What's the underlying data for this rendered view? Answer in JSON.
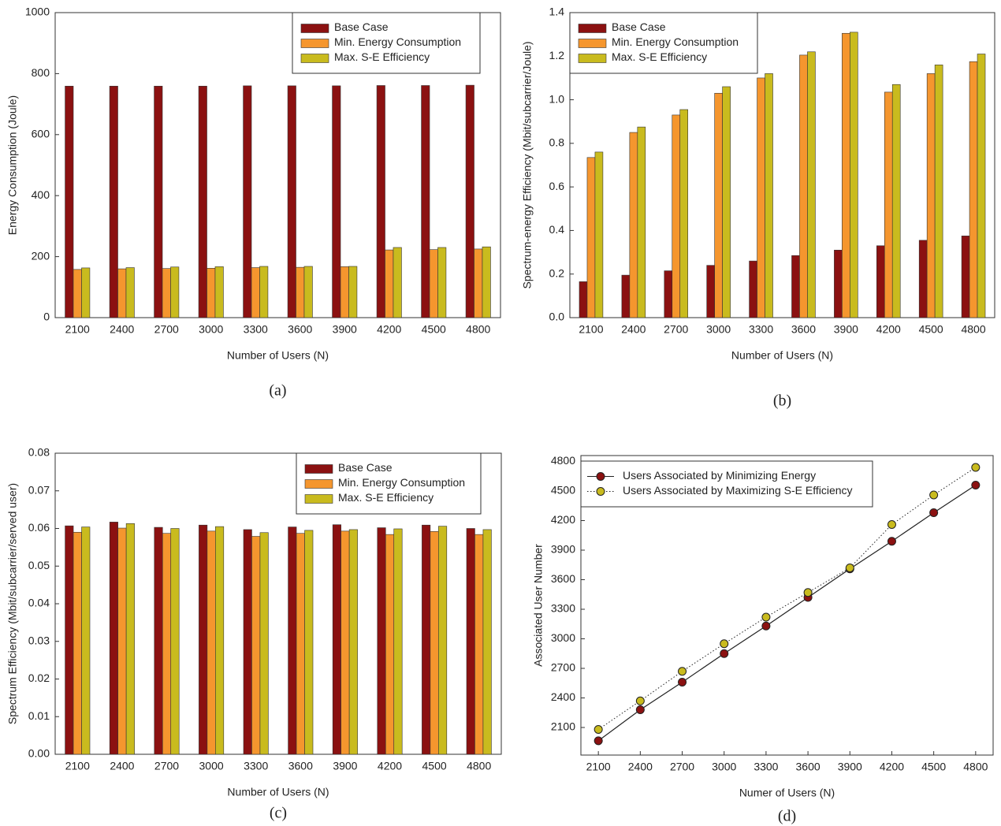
{
  "chart_data": [
    {
      "type": "bar",
      "caption": "(a)",
      "xlabel": "Number of Users (N)",
      "ylabel": "Energy Consumption (Joule)",
      "categories": [
        "2100",
        "2400",
        "2700",
        "3000",
        "3300",
        "3600",
        "3900",
        "4200",
        "4500",
        "4800"
      ],
      "series": [
        {
          "name": "Base Case",
          "color": "#8b1111",
          "values": [
            759,
            759,
            759,
            759,
            760,
            760,
            760,
            761,
            761,
            762
          ]
        },
        {
          "name": "Min. Energy Consumption",
          "color": "#f5962e",
          "values": [
            158,
            160,
            161,
            162,
            164,
            165,
            167,
            222,
            223,
            225
          ]
        },
        {
          "name": "Max. S-E Efficiency",
          "color": "#c9bb1e",
          "values": [
            163,
            164,
            166,
            167,
            168,
            168,
            168,
            230,
            230,
            232
          ]
        }
      ],
      "ylim": [
        0,
        1000
      ],
      "yticks": [
        0,
        200,
        400,
        600,
        800,
        1000
      ],
      "grid": false,
      "legend": "upper right"
    },
    {
      "type": "bar",
      "caption": "(b)",
      "xlabel": "Number of Users (N)",
      "ylabel": "Spectrum-energy Efficiency (Mbit/subcarrier/Joule)",
      "categories": [
        "2100",
        "2400",
        "2700",
        "3000",
        "3300",
        "3600",
        "3900",
        "4200",
        "4500",
        "4800"
      ],
      "series": [
        {
          "name": "Base Case",
          "color": "#8b1111",
          "values": [
            0.165,
            0.195,
            0.215,
            0.24,
            0.26,
            0.285,
            0.31,
            0.33,
            0.355,
            0.375
          ]
        },
        {
          "name": "Min. Energy Consumption",
          "color": "#f5962e",
          "values": [
            0.735,
            0.85,
            0.93,
            1.03,
            1.1,
            1.205,
            1.305,
            1.035,
            1.12,
            1.175
          ]
        },
        {
          "name": "Max. S-E Efficiency",
          "color": "#c9bb1e",
          "values": [
            0.76,
            0.875,
            0.955,
            1.06,
            1.12,
            1.22,
            1.31,
            1.07,
            1.16,
            1.21
          ]
        }
      ],
      "ylim": [
        0,
        1.4
      ],
      "yticks": [
        {
          "value": 0,
          "label": "0.0"
        },
        0.2,
        0.4,
        0.6,
        0.8,
        {
          "value": 1,
          "label": "1.0"
        },
        1.2,
        1.4
      ],
      "grid": false,
      "legend": "upper left"
    },
    {
      "type": "bar",
      "caption": "(c)",
      "xlabel": "Number of Users (N)",
      "ylabel": "Spectrum Efficiency (Mbit/subcarrier/served user)",
      "categories": [
        "2100",
        "2400",
        "2700",
        "3000",
        "3300",
        "3600",
        "3900",
        "4200",
        "4500",
        "4800"
      ],
      "series": [
        {
          "name": "Base Case",
          "color": "#8b1111",
          "values": [
            0.0607,
            0.0617,
            0.0603,
            0.0609,
            0.0597,
            0.0604,
            0.061,
            0.0602,
            0.0609,
            0.06
          ]
        },
        {
          "name": "Min. Energy Consumption",
          "color": "#f5962e",
          "values": [
            0.059,
            0.0601,
            0.0587,
            0.0593,
            0.0579,
            0.0587,
            0.0593,
            0.0584,
            0.0592,
            0.0584
          ]
        },
        {
          "name": "Max. S-E Efficiency",
          "color": "#c9bb1e",
          "values": [
            0.0604,
            0.0613,
            0.06,
            0.0605,
            0.0589,
            0.0595,
            0.0597,
            0.0599,
            0.0606,
            0.0597
          ]
        }
      ],
      "ylim": [
        0,
        0.08
      ],
      "yticks": [
        {
          "value": 0,
          "label": "0.00"
        },
        0.01,
        0.02,
        0.03,
        0.04,
        0.05,
        0.06,
        0.07,
        0.08
      ],
      "grid": false,
      "legend": "upper right"
    },
    {
      "type": "line",
      "caption": "(d)",
      "xlabel": "Numer of Users (N)",
      "ylabel": "Associated User Number",
      "x": [
        2100,
        2400,
        2700,
        3000,
        3300,
        3600,
        3900,
        4200,
        4500,
        4800
      ],
      "series": [
        {
          "name": "Users Associated by Minimizing Energy",
          "color": "#8b1111",
          "linestyle": "solid",
          "values": [
            1965,
            2280,
            2560,
            2850,
            3130,
            3420,
            3710,
            3990,
            4280,
            4560
          ]
        },
        {
          "name": "Users Associated by Maximizing S-E Efficiency",
          "color": "#c9bb1e",
          "linestyle": "dotted",
          "values": [
            2080,
            2370,
            2670,
            2950,
            3220,
            3470,
            3720,
            4160,
            4460,
            4740
          ]
        }
      ],
      "xlim": [
        1975,
        4925
      ],
      "xticks": [
        2100,
        2400,
        2700,
        3000,
        3300,
        3600,
        3900,
        4200,
        4500,
        4800
      ],
      "ylim": [
        1820,
        4860
      ],
      "yticks": [
        2100,
        2400,
        2700,
        3000,
        3300,
        3600,
        3900,
        4200,
        4500,
        4800
      ],
      "grid": false,
      "legend": "upper left"
    }
  ]
}
